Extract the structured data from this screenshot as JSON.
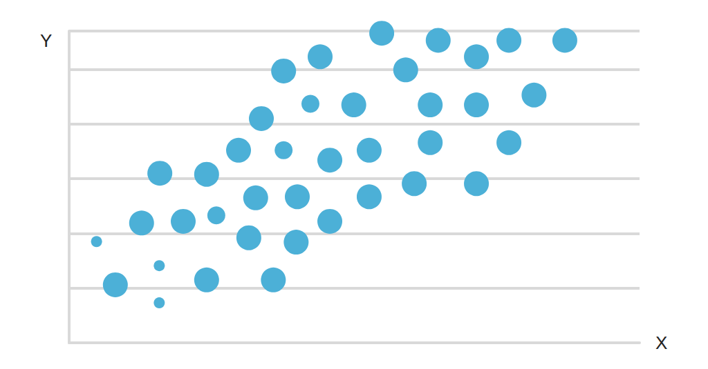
{
  "chart_data": {
    "type": "scatter",
    "x_label": "X",
    "y_label": "Y",
    "x": [
      4.8,
      8.1,
      15.8,
      15.8,
      12.7,
      15.9,
      20.0,
      24.1,
      25.8,
      24.1,
      29.7,
      31.5,
      32.7,
      33.7,
      35.8,
      37.6,
      37.6,
      39.8,
      40.0,
      42.3,
      44.0,
      45.7,
      45.7,
      49.9,
      52.6,
      52.6,
      54.8,
      59.0,
      60.5,
      63.3,
      63.3,
      64.7,
      71.4,
      71.4,
      71.4,
      77.1,
      77.1,
      81.5,
      86.9
    ],
    "values": [
      1.85,
      1.06,
      1.41,
      0.73,
      2.19,
      3.1,
      2.22,
      3.08,
      2.33,
      1.15,
      3.52,
      1.92,
      2.65,
      4.1,
      1.15,
      3.52,
      4.97,
      1.84,
      2.67,
      4.37,
      5.23,
      3.34,
      2.22,
      4.35,
      3.52,
      2.67,
      5.66,
      4.99,
      2.91,
      4.35,
      3.66,
      5.53,
      5.23,
      4.35,
      2.91,
      5.53,
      3.66,
      4.53,
      5.53
    ],
    "sizes": [
      1,
      3,
      1,
      1,
      3,
      3,
      3,
      3,
      2,
      3,
      3,
      3,
      3,
      3,
      3,
      2,
      3,
      3,
      3,
      2,
      3,
      3,
      3,
      3,
      3,
      3,
      3,
      3,
      3,
      3,
      3,
      3,
      3,
      3,
      3,
      3,
      3,
      3,
      3
    ],
    "color": "#4cb0d7",
    "xlim": [
      0,
      100
    ],
    "ylim": [
      0,
      5.7
    ],
    "yticks": [
      0,
      1,
      2,
      3,
      4,
      5
    ],
    "grid": true,
    "tick_labels": false
  }
}
